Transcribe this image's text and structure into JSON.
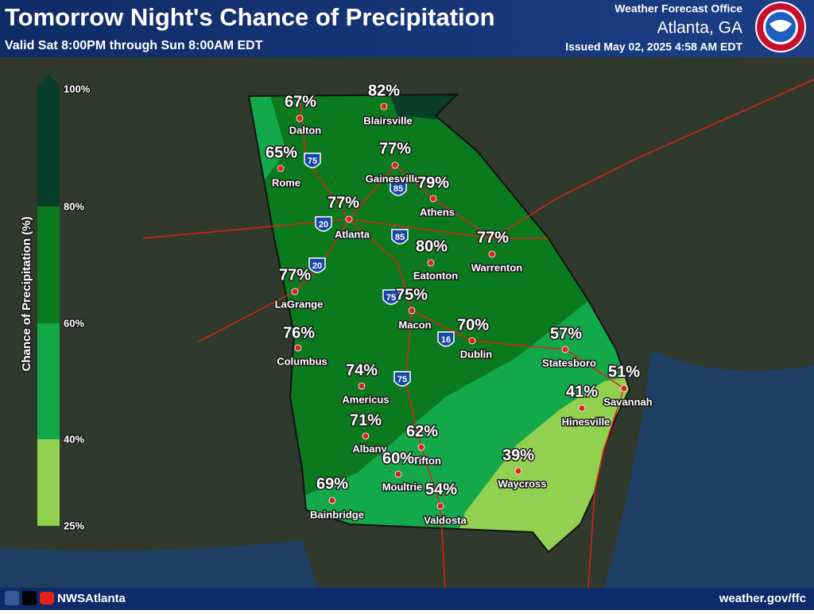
{
  "header": {
    "title": "Tomorrow Night's Chance of Precipitation",
    "subtitle": "Valid Sat 8:00PM through Sun 8:00AM EDT",
    "office": "Weather Forecast Office",
    "location": "Atlanta, GA",
    "issued": "Issued May 02, 2025 4:58 AM EDT"
  },
  "legend": {
    "title": "Chance of Precipitation (%)",
    "ticks": [
      "100%",
      "80%",
      "60%",
      "40%",
      "25%"
    ]
  },
  "cities": [
    {
      "name": "Dalton",
      "pct": "67%"
    },
    {
      "name": "Blairsville",
      "pct": "82%"
    },
    {
      "name": "Rome",
      "pct": "65%"
    },
    {
      "name": "Gainesville",
      "pct": "77%"
    },
    {
      "name": "Athens",
      "pct": "79%"
    },
    {
      "name": "Atlanta",
      "pct": "77%"
    },
    {
      "name": "Eatonton",
      "pct": "80%"
    },
    {
      "name": "Warrenton",
      "pct": "77%"
    },
    {
      "name": "LaGrange",
      "pct": "77%"
    },
    {
      "name": "Macon",
      "pct": "75%"
    },
    {
      "name": "Columbus",
      "pct": "76%"
    },
    {
      "name": "Dublin",
      "pct": "70%"
    },
    {
      "name": "Statesboro",
      "pct": "57%"
    },
    {
      "name": "Savannah",
      "pct": "51%"
    },
    {
      "name": "Americus",
      "pct": "74%"
    },
    {
      "name": "Hinesville",
      "pct": "41%"
    },
    {
      "name": "Albany",
      "pct": "71%"
    },
    {
      "name": "Tifton",
      "pct": "62%"
    },
    {
      "name": "Moultrie",
      "pct": "60%"
    },
    {
      "name": "Waycross",
      "pct": "39%"
    },
    {
      "name": "Valdosta",
      "pct": "54%"
    },
    {
      "name": "Bainbridge",
      "pct": "69%"
    }
  ],
  "interstates": [
    "75",
    "85",
    "20",
    "85",
    "20",
    "75",
    "16",
    "75"
  ],
  "footer": {
    "handle": "NWSAtlanta",
    "url": "weather.gov/ffc"
  }
}
